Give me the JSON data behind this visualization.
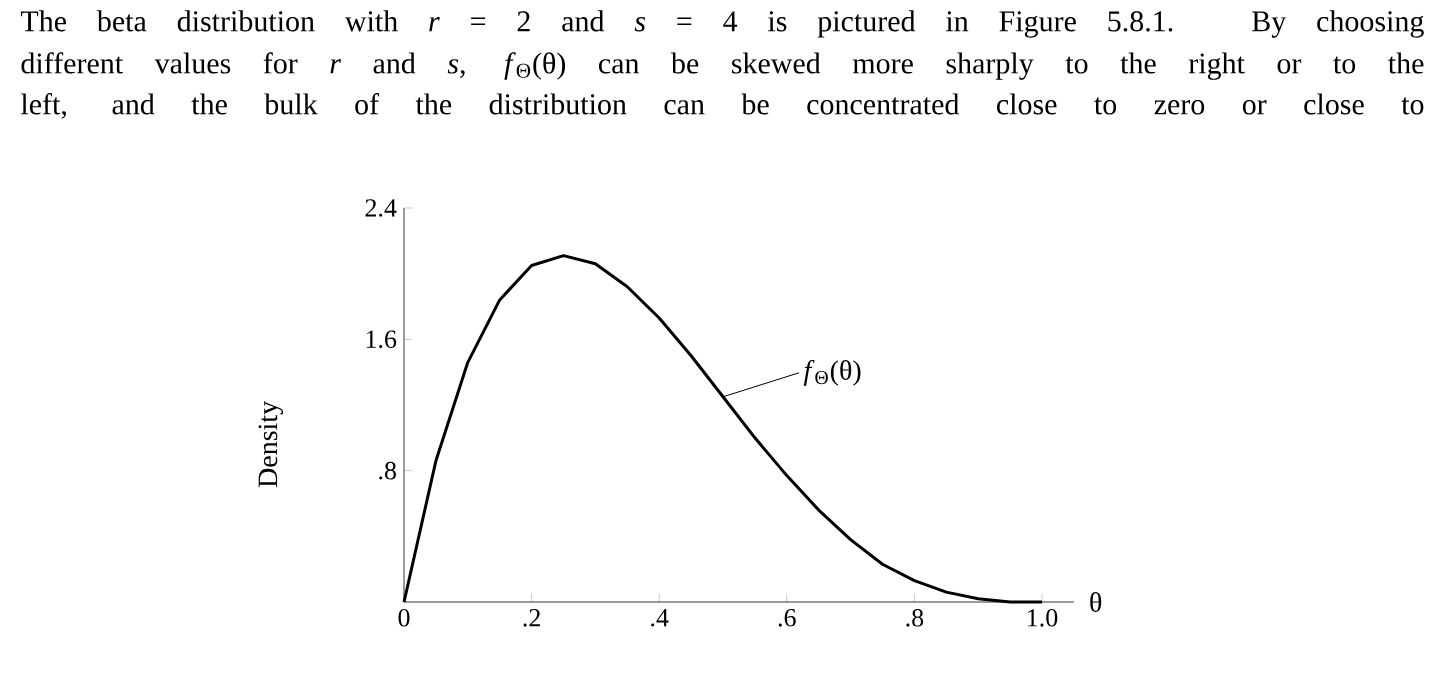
{
  "chart_data": {
    "type": "line",
    "xlabel": "θ",
    "ylabel": "Density",
    "annotations": [
      "The beta distribution with *r* = 2 and *s* = 4 is pictured in Figure 5.8.1. By choosing",
      "different values for *r* and *s*, *f*$_{Θ}$(θ) can be skewed more sharply to the right or to the",
      "left, and the bulk of the distribution can be concentrated close to zero or close to",
      {
        "text": "*f*$_{Θ}$(θ)",
        "x": 0.5,
        "y": 1.25
      }
    ],
    "x": [
      0,
      0.05,
      0.1,
      0.15,
      0.2,
      0.25,
      0.3,
      0.35,
      0.4,
      0.45,
      0.5,
      0.55,
      0.6,
      0.65,
      0.7,
      0.75,
      0.8,
      0.85,
      0.9,
      0.95,
      1.0
    ],
    "series": [
      {
        "color": "#000000",
        "values": [
          0,
          0.86,
          1.46,
          1.84,
          2.05,
          2.11,
          2.06,
          1.92,
          1.73,
          1.5,
          1.25,
          1.0,
          0.77,
          0.56,
          0.38,
          0.23,
          0.13,
          0.06,
          0.02,
          0,
          0
        ]
      }
    ],
    "xlim": [
      0,
      1.05
    ],
    "ylim": [
      0,
      2.4
    ],
    "xticks": [
      0,
      {
        "value": 0.2,
        "label": ".2"
      },
      {
        "value": 0.4,
        "label": ".4"
      },
      {
        "value": 0.6,
        "label": ".6"
      },
      {
        "value": 0.8,
        "label": ".8"
      },
      {
        "value": 1.0,
        "label": "1.0"
      }
    ],
    "yticks": [
      {
        "value": 0.8,
        "label": ".8"
      },
      1.6,
      2.4
    ],
    "marker": "none",
    "line_style": "solid"
  }
}
